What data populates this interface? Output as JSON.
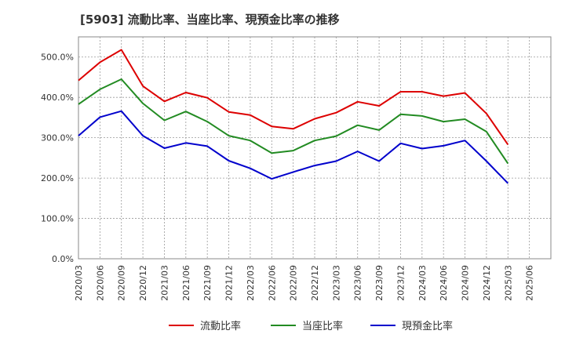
{
  "chart_data": {
    "type": "line",
    "title": "[5903]  流動比率、当座比率、現預金比率の推移",
    "xlabel": "",
    "ylabel": "",
    "ylim": [
      0,
      550
    ],
    "yticks": [
      0,
      100,
      200,
      300,
      400,
      500
    ],
    "ytick_labels": [
      "0.0%",
      "100.0%",
      "200.0%",
      "300.0%",
      "400.0%",
      "500.0%"
    ],
    "grid": true,
    "legend_position": "bottom",
    "x_tick_labels": [
      "2020/03",
      "2020/06",
      "2020/09",
      "2020/12",
      "2021/03",
      "2021/06",
      "2021/09",
      "2021/12",
      "2022/03",
      "2022/06",
      "2022/09",
      "2022/12",
      "2023/03",
      "2023/06",
      "2023/09",
      "2023/12",
      "2024/03",
      "2024/06",
      "2024/09",
      "2024/12",
      "2025/03",
      "2025/06"
    ],
    "categories": [
      "2020/03",
      "2020/06",
      "2020/09",
      "2020/12",
      "2021/03",
      "2021/06",
      "2021/09",
      "2021/12",
      "2022/03",
      "2022/06",
      "2022/09",
      "2022/12",
      "2023/03",
      "2023/06",
      "2023/09",
      "2023/12",
      "2024/03",
      "2024/06",
      "2024/09",
      "2024/12",
      "2025/03"
    ],
    "series": [
      {
        "name": "流動比率",
        "color": "#dd0000",
        "values": [
          442,
          487,
          518,
          428,
          390,
          412,
          399,
          364,
          356,
          328,
          322,
          347,
          362,
          389,
          379,
          414,
          414,
          403,
          411,
          360,
          283
        ]
      },
      {
        "name": "当座比率",
        "color": "#228b22",
        "values": [
          383,
          420,
          445,
          385,
          343,
          365,
          340,
          305,
          293,
          262,
          268,
          293,
          304,
          331,
          319,
          358,
          354,
          340,
          346,
          315,
          236
        ]
      },
      {
        "name": "現預金比率",
        "color": "#0000cc",
        "values": [
          305,
          351,
          366,
          305,
          274,
          287,
          279,
          243,
          224,
          198,
          215,
          231,
          242,
          266,
          242,
          286,
          273,
          280,
          293,
          242,
          187
        ]
      }
    ]
  }
}
